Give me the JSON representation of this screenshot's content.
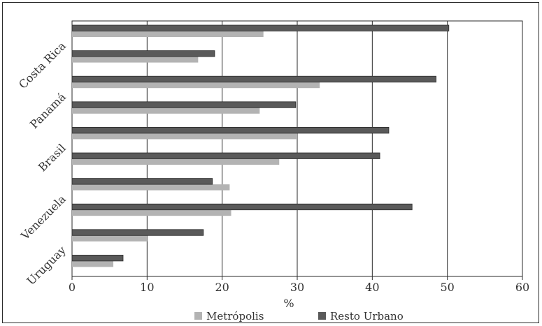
{
  "chart_data": {
    "type": "bar",
    "orientation": "horizontal",
    "xlabel": "%",
    "xlim": [
      0,
      60
    ],
    "xticks": [
      "0",
      "10",
      "20",
      "30",
      "40",
      "50",
      "60"
    ],
    "grid": true,
    "legend_placement": "bottom",
    "categories": [
      "Costa Rica",
      "",
      "Panamá",
      "",
      "Brasil",
      "",
      "Venezuela",
      "",
      "Uruguay",
      ""
    ],
    "category_labels": [
      "Costa Rica",
      "Panamá",
      "Brasil",
      "Venezuela",
      "Uruguay"
    ],
    "series": [
      {
        "name": "Resto Urbano",
        "color": "#5a5a5a",
        "values": [
          50.2,
          19.0,
          48.5,
          29.8,
          42.2,
          41.0,
          18.7,
          45.3,
          17.5,
          6.8
        ]
      },
      {
        "name": "Metrópolis",
        "color": "#b3b3b3",
        "values": [
          25.5,
          16.8,
          33.0,
          25.0,
          30.0,
          27.6,
          21.0,
          21.2,
          10.0,
          5.5
        ]
      }
    ]
  }
}
